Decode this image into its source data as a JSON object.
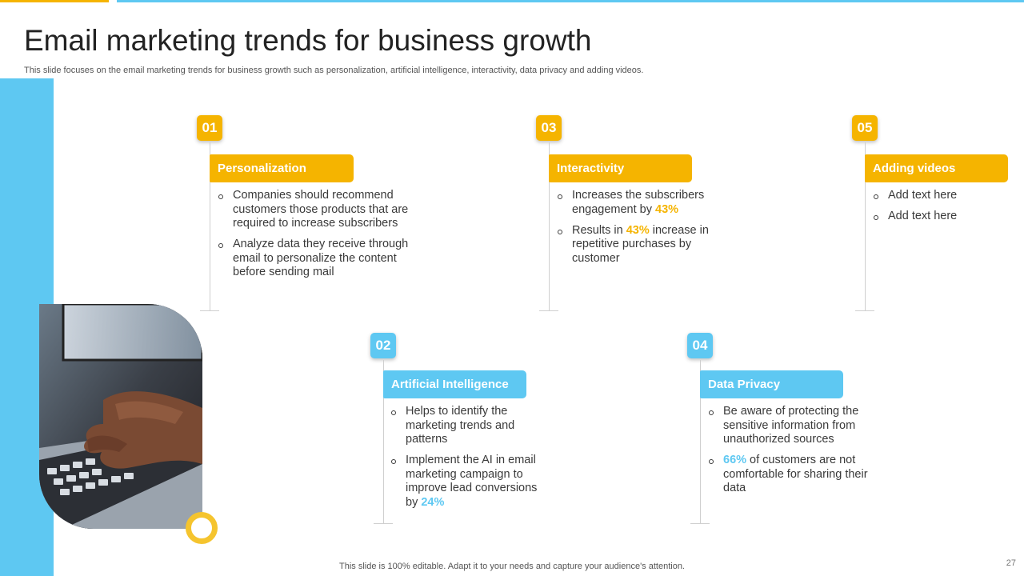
{
  "slide": {
    "title": "Email marketing trends for business growth",
    "subtitle": "This slide focuses on the email marketing trends for business growth such as personalization, artificial intelligence, interactivity,  data privacy  and adding videos.",
    "footer": "This slide is 100% editable. Adapt it to your needs and capture your audience's attention.",
    "page_number": "27"
  },
  "colors": {
    "accent_yellow": "#f5b400",
    "accent_blue": "#5ec8f2"
  },
  "trends": [
    {
      "number": "01",
      "title": "Personalization",
      "bullets": [
        {
          "text": "Companies should recommend customers those products that are required to increase subscribers"
        },
        {
          "text": "Analyze data they receive through email to personalize the content before sending mail"
        }
      ]
    },
    {
      "number": "02",
      "title": "Artificial Intelligence",
      "bullets": [
        {
          "text": "Helps to identify the marketing trends and patterns"
        },
        {
          "pre": "Implement the AI in email marketing campaign to improve lead conversions by ",
          "highlight": "24%",
          "post": ""
        }
      ]
    },
    {
      "number": "03",
      "title": "Interactivity",
      "bullets": [
        {
          "pre": "Increases the subscribers engagement by ",
          "highlight": "43%",
          "post": ""
        },
        {
          "pre": "Results in ",
          "highlight": "43%",
          "post": " increase in repetitive purchases by customer"
        }
      ]
    },
    {
      "number": "04",
      "title": "Data Privacy",
      "bullets": [
        {
          "text": "Be aware of protecting the sensitive information from unauthorized sources"
        },
        {
          "pre": "",
          "highlight": "66%",
          "post": " of customers are not comfortable for sharing their data"
        }
      ]
    },
    {
      "number": "05",
      "title": "Adding videos",
      "bullets": [
        {
          "text": "Add text here"
        },
        {
          "text": "Add text here"
        }
      ]
    }
  ]
}
